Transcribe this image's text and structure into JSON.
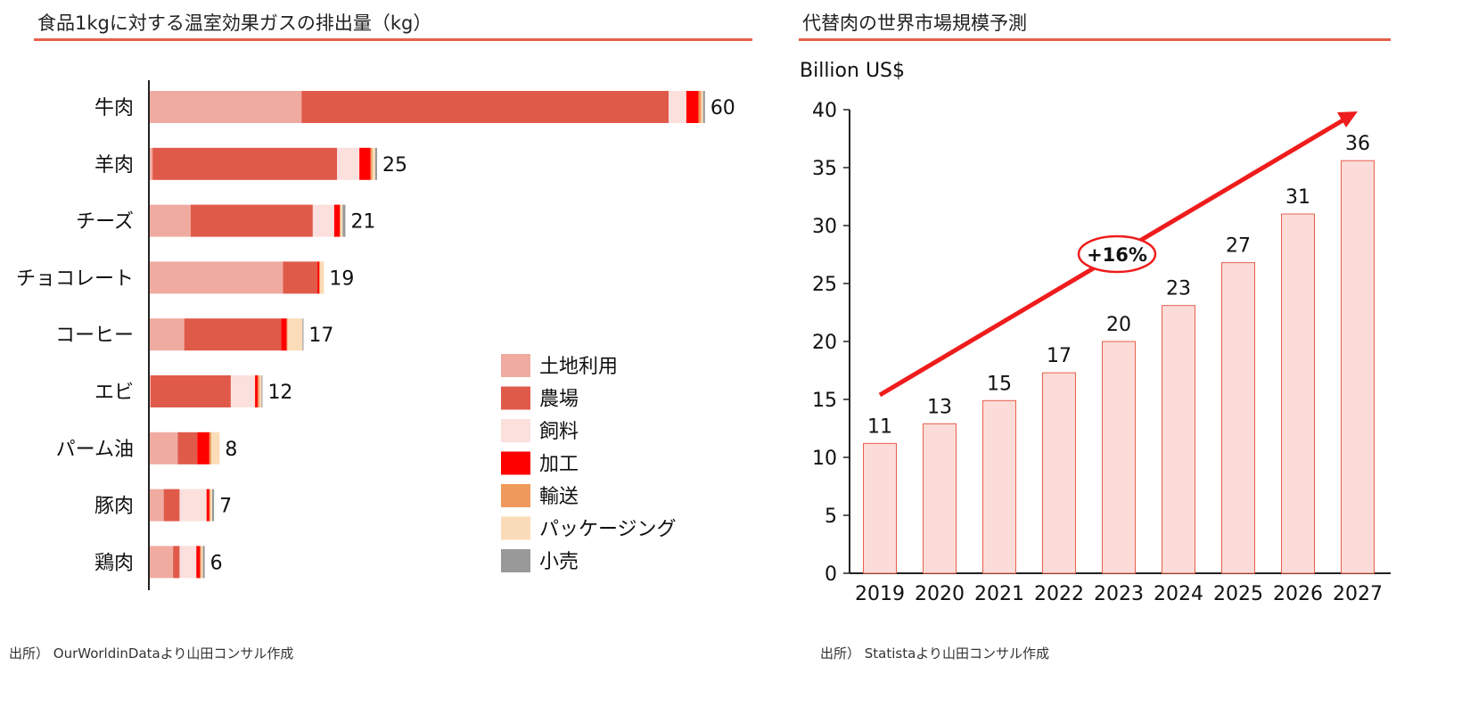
{
  "left": {
    "title": "食品1kgに対する温室効果ガスの排出量（kg）",
    "source": "出所） OurWorldinDataより山田コンサル作成"
  },
  "right": {
    "title": "代替肉の世界市場規模予測",
    "source": "出所） Statistaより山田コンサル作成"
  },
  "chart_data": [
    {
      "type": "bar",
      "orientation": "horizontal",
      "stacked": true,
      "title": "食品1kgに対する温室効果ガスの排出量（kg）",
      "categories": [
        "牛肉",
        "羊肉",
        "チーズ",
        "チョコレート",
        "コーヒー",
        "エビ",
        "パーム油",
        "豚肉",
        "鶏肉"
      ],
      "totals": [
        60,
        25,
        21,
        19,
        17,
        12,
        8,
        7,
        6
      ],
      "series": [
        {
          "name": "土地利用",
          "color": "#f0aba1",
          "values": [
            16.3,
            0.3,
            4.4,
            14.3,
            3.7,
            0.1,
            3.0,
            1.5,
            2.5
          ]
        },
        {
          "name": "農場",
          "color": "#e05a4a",
          "values": [
            39.4,
            19.8,
            13.1,
            3.7,
            10.4,
            8.6,
            2.1,
            1.7,
            0.7
          ]
        },
        {
          "name": "飼料",
          "color": "#fbe0dd",
          "values": [
            1.9,
            2.4,
            2.3,
            0,
            0,
            2.6,
            0,
            2.9,
            1.8
          ]
        },
        {
          "name": "加工",
          "color": "#ff0000",
          "values": [
            1.3,
            1.2,
            0.6,
            0.2,
            0.6,
            0.3,
            1.3,
            0.3,
            0.4
          ]
        },
        {
          "name": "輸送",
          "color": "#f0995c",
          "values": [
            0.3,
            0.2,
            0.1,
            0.1,
            0.1,
            0.2,
            0.2,
            0.1,
            0.1
          ]
        },
        {
          "name": "パッケージング",
          "color": "#fbdcb8",
          "values": [
            0.2,
            0.3,
            0.2,
            0.4,
            1.6,
            0.2,
            0.9,
            0.2,
            0.2
          ]
        },
        {
          "name": "小売",
          "color": "#999999",
          "values": [
            0.2,
            0.2,
            0.3,
            0,
            0.1,
            0.1,
            0,
            0.2,
            0.2
          ]
        }
      ]
    },
    {
      "type": "bar",
      "title": "代替肉の世界市場規模予測",
      "ylabel": "Billion US$",
      "categories": [
        "2019",
        "2020",
        "2021",
        "2022",
        "2023",
        "2024",
        "2025",
        "2026",
        "2027"
      ],
      "values": [
        11.2,
        12.9,
        14.9,
        17.3,
        20.0,
        23.1,
        26.8,
        31.0,
        35.6
      ],
      "value_labels": [
        "11",
        "13",
        "15",
        "17",
        "20",
        "23",
        "27",
        "31",
        "36"
      ],
      "ylim": [
        0,
        40
      ],
      "yticks": [
        0,
        5,
        10,
        15,
        20,
        25,
        30,
        35,
        40
      ],
      "bar_color": "#fbdcd8",
      "bar_edge": "#e8604c",
      "annotation": "+16%",
      "arrow_color": "#ee1c1c"
    }
  ]
}
